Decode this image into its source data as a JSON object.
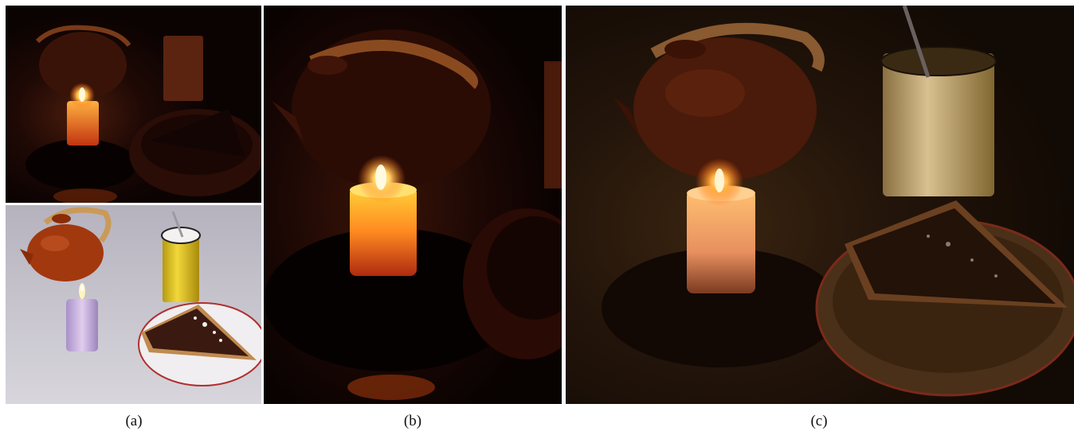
{
  "figure": {
    "captions": [
      "(a)",
      "(b)",
      "(c)"
    ],
    "panels": [
      {
        "id": "a-top",
        "description_icon": "candle-dark-photo"
      },
      {
        "id": "a-bottom",
        "description_icon": "candle-reference-photo"
      },
      {
        "id": "b",
        "description_icon": "candle-crop-photo"
      },
      {
        "id": "c",
        "description_icon": "candle-enhanced-photo"
      }
    ]
  }
}
